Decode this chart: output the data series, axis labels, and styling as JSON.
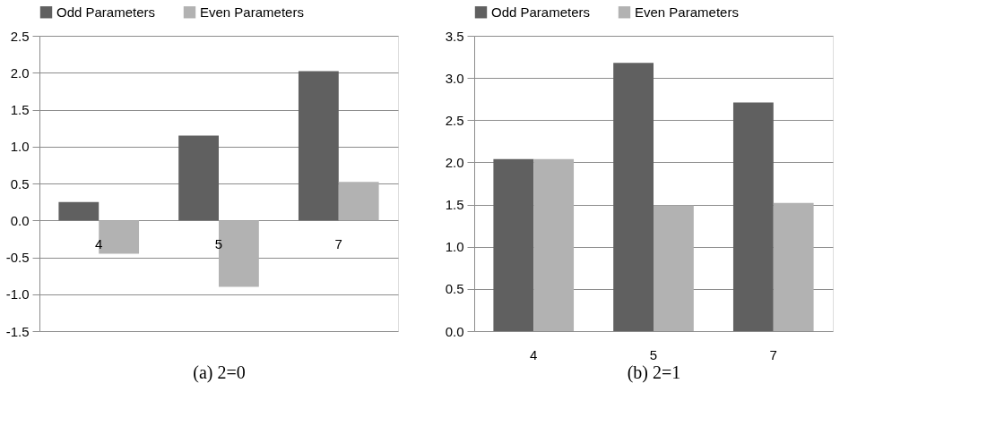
{
  "chart_data": [
    {
      "type": "bar",
      "xlabel": "(a) 2=0",
      "categories": [
        "4",
        "5",
        "7"
      ],
      "ylim": [
        -1.5,
        2.5
      ],
      "yticks": [
        {
          "value": -1.5,
          "label": "-1.5"
        },
        {
          "value": -1.0,
          "label": "-1.0"
        },
        {
          "value": -0.5,
          "label": "-0.5"
        },
        {
          "value": 0,
          "label": "0.0"
        },
        {
          "value": 0.5,
          "label": "0.5"
        },
        {
          "value": 1.0,
          "label": "1.0"
        },
        {
          "value": 1.5,
          "label": "1.5"
        },
        {
          "value": 2.0,
          "label": "2.0"
        },
        {
          "value": 2.5,
          "label": "2.5"
        }
      ],
      "grid": "y",
      "legend": "top",
      "series": [
        {
          "name": "Odd Parameters",
          "color": "#606060",
          "values": [
            0.25,
            1.15,
            2.02
          ]
        },
        {
          "name": "Even Parameters",
          "color": "#b2b2b2",
          "values": [
            -0.45,
            -0.9,
            0.52
          ]
        }
      ]
    },
    {
      "type": "bar",
      "xlabel": "(b) 2=1",
      "categories": [
        "4",
        "5",
        "7"
      ],
      "ylim": [
        0,
        3.5
      ],
      "yticks": [
        {
          "value": 0,
          "label": "0.0"
        },
        {
          "value": 0.5,
          "label": "0.5"
        },
        {
          "value": 1.0,
          "label": "1.0"
        },
        {
          "value": 1.5,
          "label": "1.5"
        },
        {
          "value": 2.0,
          "label": "2.0"
        },
        {
          "value": 2.5,
          "label": "2.5"
        },
        {
          "value": 3.0,
          "label": "3.0"
        },
        {
          "value": 3.5,
          "label": "3.5"
        }
      ],
      "grid": "y",
      "legend": "top",
      "series": [
        {
          "name": "Odd Parameters",
          "color": "#606060",
          "values": [
            2.04,
            3.18,
            2.71
          ]
        },
        {
          "name": "Even Parameters",
          "color": "#b2b2b2",
          "values": [
            2.04,
            1.49,
            1.52
          ]
        }
      ]
    }
  ]
}
